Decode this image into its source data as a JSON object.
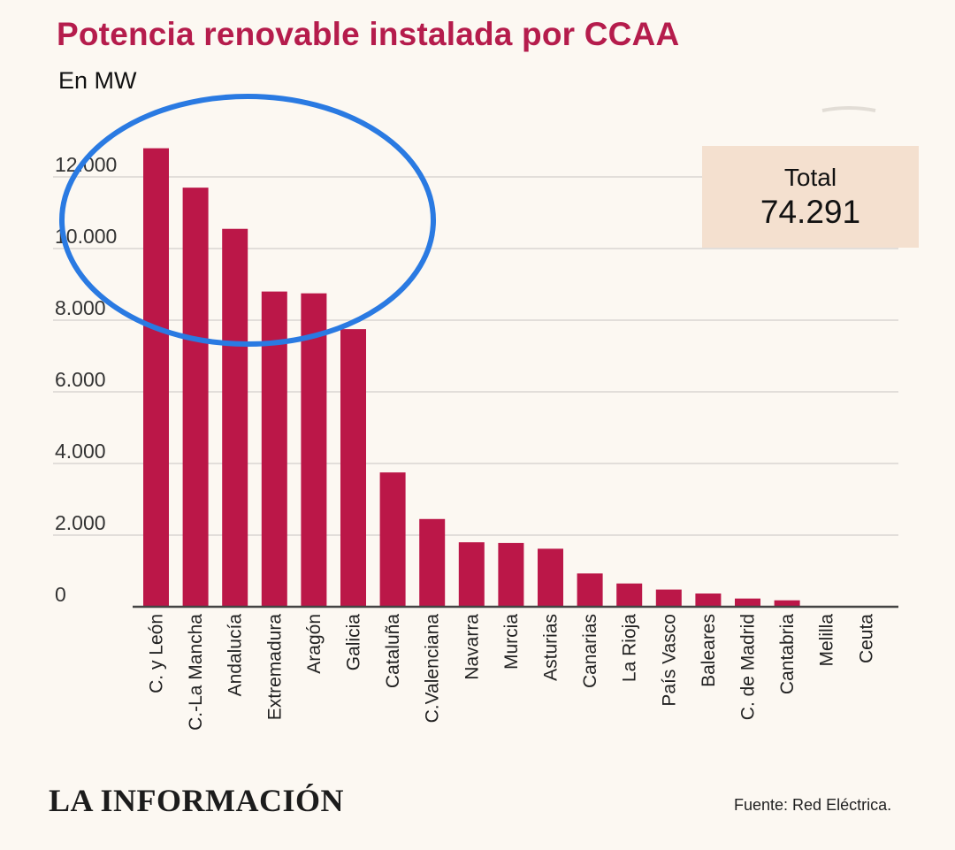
{
  "header": {
    "title": "Potencia renovable instalada por CCAA",
    "subtitle": "En MW"
  },
  "total": {
    "label": "Total",
    "value": "74.291"
  },
  "footer": {
    "logo": "LA INFORMACIÓN",
    "source": "Fuente: Red Eléctrica."
  },
  "colors": {
    "bar": "#bb1748",
    "title": "#b51c4c",
    "total_box": "#f4e0cf",
    "annotation_circle": "#2a7ae2"
  },
  "chart_data": {
    "type": "bar",
    "categories": [
      "C. y León",
      "C.-La Mancha",
      "Andalucía",
      "Extremadura",
      "Aragón",
      "Galicia",
      "Cataluña",
      "C.Valenciana",
      "Navarra",
      "Murcia",
      "Asturias",
      "Canarias",
      "La Rioja",
      "País Vasco",
      "Baleares",
      "C. de Madrid",
      "Cantabria",
      "Melilla",
      "Ceuta"
    ],
    "values": [
      12800,
      11700,
      10550,
      8800,
      8750,
      7750,
      3750,
      2450,
      1800,
      1780,
      1620,
      930,
      650,
      480,
      370,
      230,
      180,
      0,
      0
    ],
    "ylim": [
      0,
      12000
    ],
    "yticks": [
      0,
      2000,
      4000,
      6000,
      8000,
      10000,
      12000
    ],
    "ytick_labels": [
      "0",
      "2.000",
      "4.000",
      "6.000",
      "8.000",
      "10.000",
      "12.000"
    ],
    "grid": true
  }
}
